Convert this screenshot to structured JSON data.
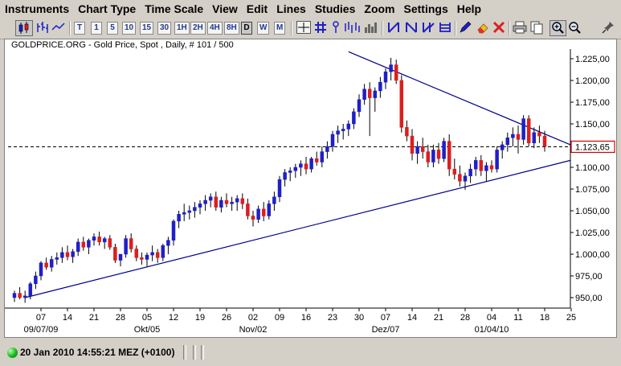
{
  "menu": [
    "Instruments",
    "Chart Type",
    "Time Scale",
    "View",
    "Edit",
    "Lines",
    "Studies",
    "Zoom",
    "Settings",
    "Help"
  ],
  "toolbar": {
    "timeframes": [
      "T",
      "1",
      "5",
      "10",
      "15",
      "30",
      "1H",
      "2H",
      "4H",
      "8H",
      "D",
      "W",
      "M"
    ],
    "active_timeframe": "D",
    "icons": [
      "candlestick-icon",
      "bar-chart-icon",
      "line-chart-icon",
      "crosshair-icon",
      "grid-icon",
      "drawing-tools-icon",
      "histogram-icon",
      "fibonacci-icon",
      "print-icon",
      "eraser-icon",
      "delete-icon",
      "zoom-in-icon",
      "zoom-out-icon",
      "pin-icon"
    ]
  },
  "chart": {
    "title": "GOLDPRICE.ORG - Gold Price, Spot , Daily, # 101 / 500",
    "price_label": "1.123,65",
    "price_label_color": "#d40000",
    "trendline_color": "#00008b",
    "bull_color": "#1f1fc8",
    "bear_color": "#dc1e1e"
  },
  "chart_data": {
    "type": "candlestick",
    "title": "GOLDPRICE.ORG - Gold Price, Spot , Daily, # 101 / 500",
    "y_ticks": [
      "1.225,00",
      "1.200,00",
      "1.175,00",
      "1.150,00",
      "1.125,00",
      "1.100,00",
      "1.075,00",
      "1.050,00",
      "1.025,00",
      "1.000,00",
      "975,00",
      "950,00"
    ],
    "y_tick_values": [
      1225,
      1200,
      1175,
      1150,
      1125,
      1100,
      1075,
      1050,
      1025,
      1000,
      975,
      950
    ],
    "ylim": [
      940,
      1235
    ],
    "x_days": [
      "07",
      "14",
      "21",
      "28",
      "05",
      "12",
      "19",
      "26",
      "02",
      "09",
      "16",
      "23",
      "30",
      "07",
      "14",
      "21",
      "28",
      "04",
      "11",
      "18",
      "25"
    ],
    "x_months": [
      "09/07/09",
      "Okt/05",
      "Nov/02",
      "Dez/07",
      "01/04/10"
    ],
    "current_price": 1123.65,
    "ohlc": [
      [
        950,
        958,
        945,
        955
      ],
      [
        955,
        962,
        948,
        950
      ],
      [
        950,
        958,
        944,
        952
      ],
      [
        952,
        968,
        948,
        966
      ],
      [
        966,
        980,
        960,
        975
      ],
      [
        975,
        992,
        970,
        990
      ],
      [
        990,
        996,
        982,
        985
      ],
      [
        985,
        998,
        980,
        994
      ],
      [
        994,
        1002,
        988,
        996
      ],
      [
        996,
        1008,
        990,
        1002
      ],
      [
        1002,
        1010,
        993,
        997
      ],
      [
        997,
        1006,
        990,
        1003
      ],
      [
        1003,
        1018,
        998,
        1014
      ],
      [
        1014,
        1020,
        1004,
        1008
      ],
      [
        1008,
        1018,
        1000,
        1016
      ],
      [
        1016,
        1024,
        1010,
        1020
      ],
      [
        1020,
        1026,
        1010,
        1014
      ],
      [
        1014,
        1020,
        1006,
        1018
      ],
      [
        1018,
        1022,
        1005,
        1008
      ],
      [
        1008,
        1012,
        990,
        993
      ],
      [
        993,
        1000,
        986,
        1000
      ],
      [
        1000,
        1022,
        996,
        1018
      ],
      [
        1018,
        1024,
        1002,
        1006
      ],
      [
        1006,
        1010,
        992,
        996
      ],
      [
        996,
        1002,
        988,
        994
      ],
      [
        994,
        1002,
        986,
        999
      ],
      [
        999,
        1010,
        992,
        1002
      ],
      [
        1002,
        1006,
        990,
        996
      ],
      [
        996,
        1012,
        992,
        1010
      ],
      [
        1010,
        1020,
        1000,
        1016
      ],
      [
        1016,
        1040,
        1010,
        1038
      ],
      [
        1038,
        1050,
        1030,
        1046
      ],
      [
        1046,
        1058,
        1038,
        1048
      ],
      [
        1048,
        1056,
        1040,
        1050
      ],
      [
        1050,
        1060,
        1042,
        1054
      ],
      [
        1054,
        1062,
        1046,
        1058
      ],
      [
        1058,
        1068,
        1050,
        1062
      ],
      [
        1062,
        1070,
        1054,
        1066
      ],
      [
        1066,
        1072,
        1050,
        1054
      ],
      [
        1054,
        1066,
        1048,
        1062
      ],
      [
        1062,
        1070,
        1054,
        1058
      ],
      [
        1058,
        1066,
        1050,
        1060
      ],
      [
        1060,
        1068,
        1050,
        1064
      ],
      [
        1064,
        1070,
        1052,
        1058
      ],
      [
        1058,
        1064,
        1040,
        1044
      ],
      [
        1044,
        1050,
        1032,
        1040
      ],
      [
        1040,
        1056,
        1036,
        1052
      ],
      [
        1052,
        1060,
        1038,
        1044
      ],
      [
        1044,
        1062,
        1040,
        1058
      ],
      [
        1058,
        1072,
        1050,
        1066
      ],
      [
        1066,
        1090,
        1060,
        1086
      ],
      [
        1086,
        1098,
        1078,
        1094
      ],
      [
        1094,
        1100,
        1084,
        1096
      ],
      [
        1096,
        1104,
        1088,
        1100
      ],
      [
        1100,
        1108,
        1090,
        1104
      ],
      [
        1104,
        1112,
        1092,
        1098
      ],
      [
        1098,
        1112,
        1094,
        1110
      ],
      [
        1110,
        1118,
        1102,
        1106
      ],
      [
        1106,
        1124,
        1100,
        1118
      ],
      [
        1118,
        1130,
        1110,
        1124
      ],
      [
        1124,
        1142,
        1118,
        1138
      ],
      [
        1138,
        1148,
        1128,
        1142
      ],
      [
        1142,
        1150,
        1132,
        1144
      ],
      [
        1144,
        1154,
        1136,
        1150
      ],
      [
        1150,
        1168,
        1144,
        1164
      ],
      [
        1164,
        1184,
        1158,
        1178
      ],
      [
        1178,
        1196,
        1172,
        1190
      ],
      [
        1190,
        1198,
        1136,
        1180
      ],
      [
        1180,
        1192,
        1164,
        1188
      ],
      [
        1188,
        1204,
        1180,
        1198
      ],
      [
        1198,
        1214,
        1190,
        1210
      ],
      [
        1210,
        1226,
        1200,
        1218
      ],
      [
        1218,
        1224,
        1196,
        1200
      ],
      [
        1200,
        1206,
        1140,
        1146
      ],
      [
        1146,
        1154,
        1130,
        1136
      ],
      [
        1136,
        1144,
        1108,
        1116
      ],
      [
        1116,
        1130,
        1104,
        1124
      ],
      [
        1124,
        1134,
        1110,
        1118
      ],
      [
        1118,
        1126,
        1100,
        1106
      ],
      [
        1106,
        1126,
        1100,
        1120
      ],
      [
        1120,
        1128,
        1104,
        1110
      ],
      [
        1110,
        1134,
        1106,
        1130
      ],
      [
        1130,
        1138,
        1090,
        1098
      ],
      [
        1098,
        1110,
        1086,
        1092
      ],
      [
        1092,
        1102,
        1078,
        1084
      ],
      [
        1084,
        1094,
        1074,
        1090
      ],
      [
        1090,
        1104,
        1082,
        1098
      ],
      [
        1098,
        1112,
        1090,
        1108
      ],
      [
        1108,
        1114,
        1090,
        1096
      ],
      [
        1096,
        1106,
        1084,
        1102
      ],
      [
        1102,
        1108,
        1094,
        1098
      ],
      [
        1098,
        1124,
        1094,
        1120
      ],
      [
        1120,
        1130,
        1110,
        1126
      ],
      [
        1126,
        1140,
        1118,
        1134
      ],
      [
        1134,
        1146,
        1124,
        1138
      ],
      [
        1138,
        1148,
        1116,
        1132
      ],
      [
        1132,
        1160,
        1126,
        1156
      ],
      [
        1156,
        1160,
        1124,
        1128
      ],
      [
        1128,
        1146,
        1122,
        1140
      ],
      [
        1140,
        1148,
        1128,
        1136
      ],
      [
        1136,
        1142,
        1118,
        1124
      ]
    ]
  },
  "status": {
    "datetime": "20 Jan 2010 14:55:21 MEZ (+0100)"
  }
}
